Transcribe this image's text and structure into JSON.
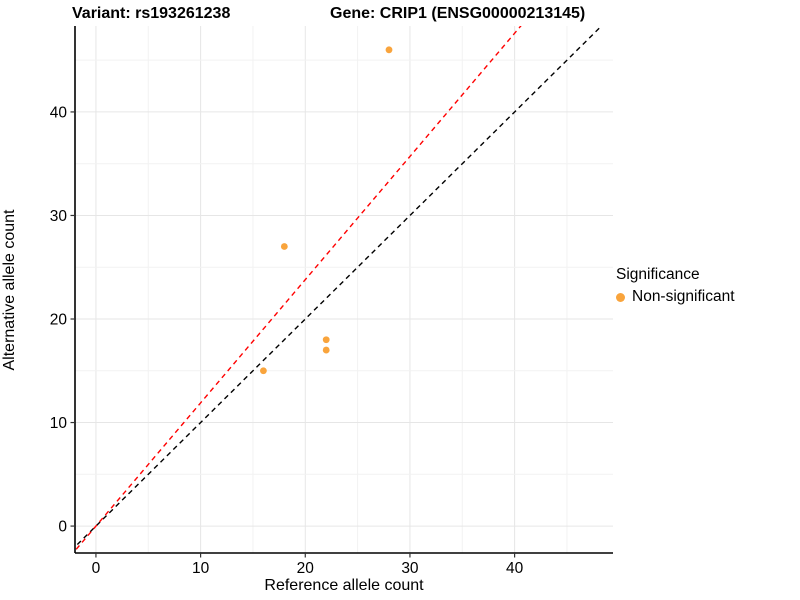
{
  "title": {
    "variant": "Variant: rs193261238",
    "gene": "Gene: CRIP1 (ENSG00000213145)"
  },
  "chart_data": {
    "type": "scatter",
    "xlabel": "Reference allele count",
    "ylabel": "Alternative allele count",
    "xlim": [
      -2.0,
      49.4
    ],
    "ylim": [
      -2.6,
      48.3
    ],
    "x_ticks": [
      0,
      10,
      20,
      30,
      40
    ],
    "y_ticks": [
      0,
      10,
      20,
      30,
      40
    ],
    "minor_grid_step": 5,
    "grid": true,
    "points": [
      {
        "x": 28,
        "y": 46,
        "significance": "Non-significant"
      },
      {
        "x": 18,
        "y": 27,
        "significance": "Non-significant"
      },
      {
        "x": 22,
        "y": 18,
        "significance": "Non-significant"
      },
      {
        "x": 22,
        "y": 17,
        "significance": "Non-significant"
      },
      {
        "x": 16,
        "y": 15,
        "significance": "Non-significant"
      }
    ],
    "point_color": "#F9A43C",
    "lines": [
      {
        "name": "identity-line",
        "slope": 1.0,
        "intercept": 0,
        "color": "#000000",
        "style": "dashed"
      },
      {
        "name": "expected-ratio-line",
        "slope": 1.19,
        "intercept": 0,
        "color": "#FF0000",
        "style": "dashed"
      }
    ],
    "legend": {
      "title": "Significance",
      "position": "right",
      "items": [
        {
          "label": "Non-significant",
          "color": "#F9A43C",
          "marker": "circle"
        }
      ]
    },
    "colors": {
      "background": "#FFFFFF",
      "major_grid": "#E6E6E6",
      "minor_grid": "#F2F2F2",
      "axis_line": "#000000",
      "tick_mark": "#333333",
      "tick_label": "#000000"
    }
  }
}
